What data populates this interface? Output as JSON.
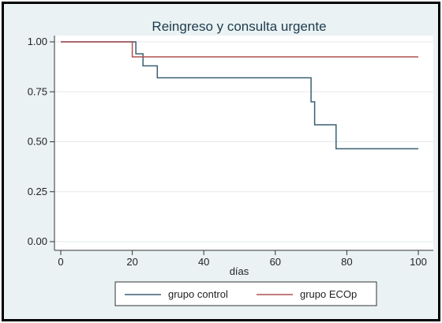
{
  "chart_data": {
    "type": "line",
    "title": "Reingreso y consulta urgente",
    "xlabel": "días",
    "ylabel": "",
    "xlim": [
      0,
      100
    ],
    "ylim": [
      0,
      1
    ],
    "x_ticks": [
      "0",
      "20",
      "40",
      "60",
      "80",
      "100"
    ],
    "y_ticks": [
      "0.00",
      "0.25",
      "0.50",
      "0.75",
      "1.00"
    ],
    "step": true,
    "grid": "horizontal",
    "legend_position": "bottom",
    "series": [
      {
        "name": "grupo control",
        "color": "#3a5f73",
        "points": [
          [
            0,
            1.0
          ],
          [
            21,
            0.94
          ],
          [
            23,
            0.88
          ],
          [
            27,
            0.82
          ],
          [
            70,
            0.7
          ],
          [
            71,
            0.585
          ],
          [
            77,
            0.465
          ],
          [
            100,
            0.465
          ]
        ]
      },
      {
        "name": "grupo ECOp",
        "color": "#b05050",
        "points": [
          [
            0,
            1.0
          ],
          [
            20,
            0.925
          ],
          [
            100,
            0.925
          ]
        ]
      }
    ]
  }
}
